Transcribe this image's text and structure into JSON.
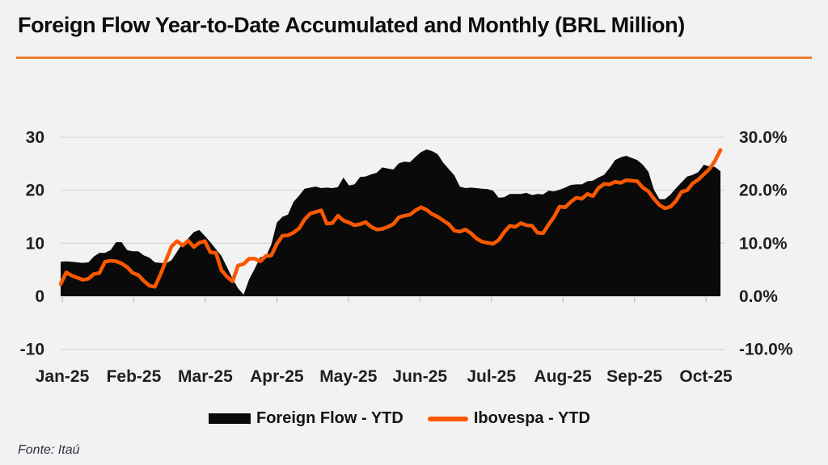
{
  "title": "Foreign Flow Year-to-Date Accumulated and Monthly (BRL Million)",
  "source": "Fonte: Itaú",
  "colors": {
    "background": "#F2F2F2",
    "title_rule": "#ED7D31",
    "series_black": "#0A0A0A",
    "series_orange": "#F95801",
    "gridline": "#D9D9D9",
    "tick": "#BFBFBF",
    "axis_text": "#1F1F1F",
    "source_text": "#2A3042"
  },
  "legend": [
    {
      "label": "Foreign Flow - YTD",
      "swatch": "black-area"
    },
    {
      "label": "Ibovespa - YTD",
      "swatch": "orange-line"
    }
  ],
  "chart_data": {
    "type": "area",
    "title": "Foreign Flow Year-to-Date Accumulated and Monthly (BRL Million)",
    "grid": true,
    "legend_position": "bottom",
    "x_axis": {
      "categories": [
        "Jan-25",
        "Feb-25",
        "Mar-25",
        "Apr-25",
        "May-25",
        "Jun-25",
        "Jul-25",
        "Aug-25",
        "Sep-25",
        "Oct-25"
      ]
    },
    "left_axis": {
      "range": [
        -10,
        30
      ],
      "ticks": [
        30,
        20,
        10,
        0,
        -10
      ],
      "labels": [
        "30",
        "20",
        "10",
        "0",
        "-10"
      ],
      "gridline_ticks": [
        30,
        20,
        10,
        -10
      ]
    },
    "right_axis": {
      "range": [
        -10,
        30
      ],
      "ticks": [
        30,
        20,
        10,
        0,
        -10
      ],
      "labels": [
        "30.0%",
        "20.0%",
        "10.0%",
        "0.0%",
        "-10.0%"
      ]
    },
    "series": [
      {
        "name": "Foreign Flow - YTD",
        "render": "area",
        "axis": "left",
        "color": "#0A0A0A",
        "values": [
          6.5,
          6.6,
          6.5,
          6.4,
          6.3,
          6.4,
          7.5,
          8.2,
          8.2,
          8.7,
          10.2,
          10.2,
          8.7,
          8.5,
          8.5,
          7.7,
          7.3,
          6.4,
          6.3,
          6.2,
          6.8,
          8.4,
          10.0,
          10.9,
          12.1,
          12.5,
          11.4,
          10.2,
          8.9,
          7.6,
          5.5,
          3.3,
          1.5,
          0.3,
          3.2,
          5.2,
          7.4,
          7.4,
          9.8,
          13.9,
          15.0,
          15.4,
          17.8,
          19.0,
          20.3,
          20.5,
          20.7,
          20.4,
          20.5,
          20.4,
          20.6,
          22.4,
          20.9,
          21.1,
          22.5,
          22.6,
          23.0,
          23.3,
          24.3,
          24.1,
          23.9,
          25.1,
          25.4,
          25.3,
          26.3,
          27.2,
          27.7,
          27.4,
          26.8,
          25.2,
          24.0,
          22.8,
          20.7,
          20.4,
          20.5,
          20.4,
          20.3,
          20.2,
          19.9,
          18.6,
          18.7,
          19.3,
          19.3,
          19.3,
          19.5,
          19.1,
          19.3,
          19.2,
          19.9,
          19.8,
          20.1,
          20.5,
          21.0,
          21.1,
          21.1,
          21.7,
          21.8,
          22.4,
          22.9,
          24.2,
          25.7,
          26.2,
          26.5,
          26.1,
          25.7,
          24.8,
          23.5,
          20.1,
          18.3,
          18.3,
          19.2,
          20.4,
          21.5,
          22.6,
          22.9,
          23.4,
          24.8,
          24.5,
          24.4,
          23.6
        ]
      },
      {
        "name": "Ibovespa - YTD",
        "render": "line",
        "axis": "right",
        "color": "#F95801",
        "values": [
          2.3,
          4.5,
          3.9,
          3.5,
          3.1,
          3.3,
          4.2,
          4.4,
          6.5,
          6.7,
          6.6,
          6.2,
          5.5,
          4.4,
          4.0,
          2.9,
          2.0,
          1.8,
          4.1,
          6.8,
          9.4,
          10.4,
          9.6,
          10.5,
          9.3,
          10.1,
          10.4,
          8.3,
          8.2,
          4.9,
          3.7,
          2.8,
          5.8,
          6.1,
          7.1,
          7.1,
          6.6,
          7.6,
          7.7,
          9.9,
          11.4,
          11.5,
          12.0,
          12.8,
          14.5,
          15.6,
          15.9,
          16.2,
          13.7,
          13.8,
          15.2,
          14.3,
          13.9,
          13.4,
          13.6,
          14.0,
          13.1,
          12.6,
          12.7,
          13.1,
          13.6,
          14.9,
          15.2,
          15.4,
          16.2,
          16.8,
          16.3,
          15.5,
          15.0,
          14.3,
          13.6,
          12.4,
          12.2,
          12.6,
          11.9,
          10.9,
          10.3,
          10.1,
          9.9,
          10.6,
          12.1,
          13.3,
          13.1,
          13.8,
          13.4,
          13.3,
          12.0,
          11.9,
          13.5,
          15.0,
          16.9,
          16.8,
          17.8,
          18.6,
          18.4,
          19.3,
          18.9,
          20.4,
          21.2,
          21.1,
          21.6,
          21.4,
          21.9,
          21.8,
          21.7,
          20.5,
          19.8,
          18.4,
          17.2,
          16.6,
          16.9,
          18.0,
          19.7,
          20.0,
          21.3,
          22.0,
          23.0,
          24.0,
          25.5,
          27.6
        ]
      }
    ]
  }
}
